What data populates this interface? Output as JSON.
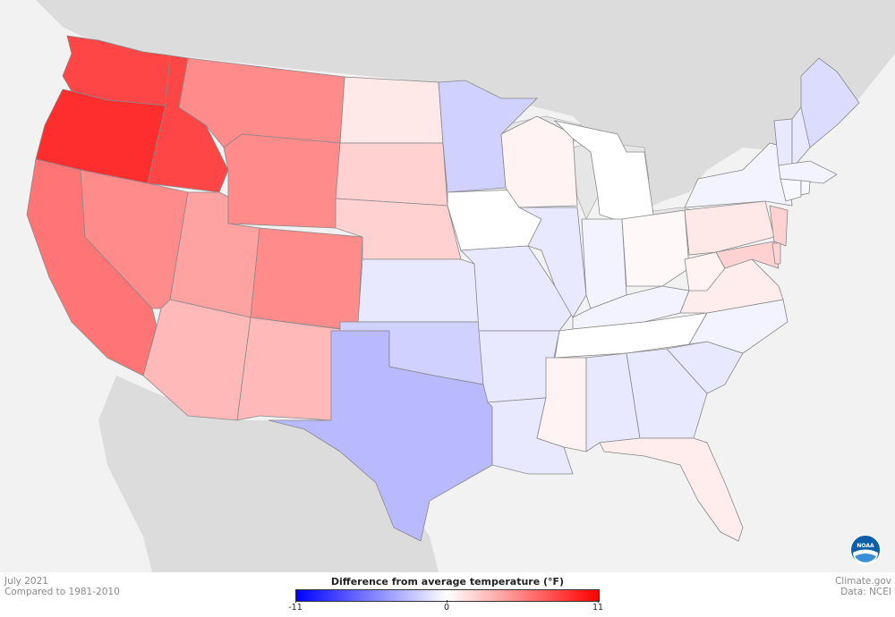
{
  "footer": {
    "date": "July 2021",
    "baseline": "Compared to 1981-2010",
    "source": "Climate.gov",
    "data_credit": "Data: NCEI"
  },
  "legend": {
    "title": "Difference from average temperature (°F)",
    "min_label": "-11",
    "mid_label": "0",
    "max_label": "11",
    "min_value": -11,
    "max_value": 11,
    "colors": {
      "cold": "#0000ff",
      "neutral": "#ffffff",
      "warm": "#ff0000"
    }
  },
  "logo": {
    "text": "NOAA"
  },
  "colors": {
    "background": "#f2f2f2",
    "surrounding_land": "#dcdcdc",
    "state_border": "#888888",
    "lake": "#e6e6e6"
  },
  "regions": [
    {
      "name": "Montana",
      "anomaly": 8
    },
    {
      "name": "Idaho",
      "anomaly": 9
    },
    {
      "name": "Washington",
      "anomaly": 6
    },
    {
      "name": "Oregon",
      "anomaly": 8
    },
    {
      "name": "California",
      "anomaly": 5
    },
    {
      "name": "Nevada",
      "anomaly": 5
    },
    {
      "name": "Wyoming",
      "anomaly": 5
    },
    {
      "name": "Utah",
      "anomaly": 4
    },
    {
      "name": "Colorado",
      "anomaly": 3
    },
    {
      "name": "North Dakota",
      "anomaly": 5
    },
    {
      "name": "South Dakota",
      "anomaly": 3
    },
    {
      "name": "Nebraska",
      "anomaly": 1
    },
    {
      "name": "Minnesota",
      "anomaly": 2
    },
    {
      "name": "Arizona",
      "anomaly": 2
    },
    {
      "name": "New Mexico",
      "anomaly": -1
    },
    {
      "name": "Kansas",
      "anomaly": -2
    },
    {
      "name": "Oklahoma",
      "anomaly": -3
    },
    {
      "name": "Texas",
      "anomaly": -2
    },
    {
      "name": "Iowa",
      "anomaly": 0
    },
    {
      "name": "Missouri",
      "anomaly": -1
    },
    {
      "name": "Arkansas",
      "anomaly": -1
    },
    {
      "name": "Louisiana",
      "anomaly": -1
    },
    {
      "name": "Wisconsin",
      "anomaly": 0.5
    },
    {
      "name": "Illinois",
      "anomaly": -1
    },
    {
      "name": "Michigan",
      "anomaly": 0
    },
    {
      "name": "Indiana",
      "anomaly": -0.5
    },
    {
      "name": "Ohio",
      "anomaly": 0.3
    },
    {
      "name": "Kentucky",
      "anomaly": -0.5
    },
    {
      "name": "Tennessee",
      "anomaly": 0
    },
    {
      "name": "Mississippi",
      "anomaly": 0.5
    },
    {
      "name": "Alabama",
      "anomaly": -1
    },
    {
      "name": "Georgia",
      "anomaly": -1
    },
    {
      "name": "Florida",
      "anomaly": 0.8
    },
    {
      "name": "South Carolina",
      "anomaly": -1
    },
    {
      "name": "North Carolina",
      "anomaly": -0.5
    },
    {
      "name": "Virginia",
      "anomaly": 0.8
    },
    {
      "name": "West Virginia",
      "anomaly": 0.5
    },
    {
      "name": "Pennsylvania",
      "anomaly": 1
    },
    {
      "name": "New York",
      "anomaly": -0.5
    },
    {
      "name": "Maryland",
      "anomaly": 2
    },
    {
      "name": "New Jersey",
      "anomaly": 2
    },
    {
      "name": "Delaware",
      "anomaly": 2
    },
    {
      "name": "Maine",
      "anomaly": -1.5
    },
    {
      "name": "Vermont",
      "anomaly": -1
    },
    {
      "name": "New Hampshire",
      "anomaly": -1
    },
    {
      "name": "Massachusetts",
      "anomaly": -0.5
    },
    {
      "name": "Connecticut",
      "anomaly": -0.3
    },
    {
      "name": "Rhode Island",
      "anomaly": -0.3
    }
  ]
}
